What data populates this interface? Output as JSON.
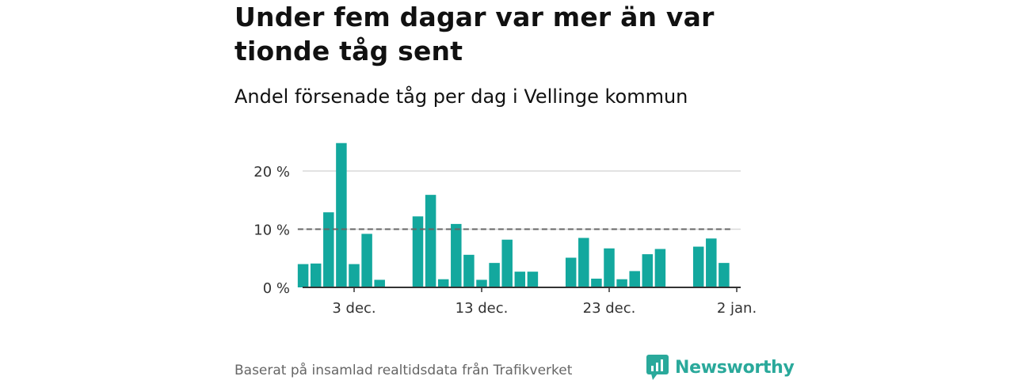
{
  "title": "Under fem dagar var mer än var tionde tåg sent",
  "subtitle": "Andel försenade tåg per dag i Vellinge kommun",
  "footer": "Baserat på insamlad realtidsdata från Trafikverket",
  "brand": "Newsworthy",
  "colors": {
    "bar": "#13a89e",
    "grid": "#d9d9d9",
    "reference": "#666666",
    "brand": "#2aa99b"
  },
  "chart_data": {
    "type": "bar",
    "x_type": "date",
    "categories": [
      "2020-11-29",
      "2020-11-30",
      "2020-12-01",
      "2020-12-02",
      "2020-12-03",
      "2020-12-04",
      "2020-12-05",
      "2020-12-08",
      "2020-12-09",
      "2020-12-10",
      "2020-12-11",
      "2020-12-12",
      "2020-12-13",
      "2020-12-14",
      "2020-12-15",
      "2020-12-16",
      "2020-12-17",
      "2020-12-20",
      "2020-12-21",
      "2020-12-22",
      "2020-12-23",
      "2020-12-24",
      "2020-12-25",
      "2020-12-26",
      "2020-12-27",
      "2020-12-30",
      "2020-12-31",
      "2021-01-01"
    ],
    "values": [
      4,
      4.1,
      12.9,
      24.8,
      4,
      9.2,
      1.3,
      12.2,
      15.9,
      1.4,
      10.9,
      5.6,
      1.3,
      4.2,
      8.2,
      2.7,
      2.7,
      5.1,
      8.5,
      1.5,
      6.7,
      1.4,
      2.8,
      5.7,
      6.6,
      7,
      8.4,
      4.2
    ],
    "ylim": [
      0,
      25
    ],
    "y_ticks": [
      0,
      10,
      20
    ],
    "y_tick_labels": [
      "0 %",
      "10 %",
      "20 %"
    ],
    "x_ticks": [
      "2020-12-03",
      "2020-12-13",
      "2020-12-23",
      "2021-01-02"
    ],
    "x_tick_labels": [
      "3 dec.",
      "13 dec.",
      "23 dec.",
      "2 jan."
    ],
    "reference_line": 10,
    "grid": true
  }
}
